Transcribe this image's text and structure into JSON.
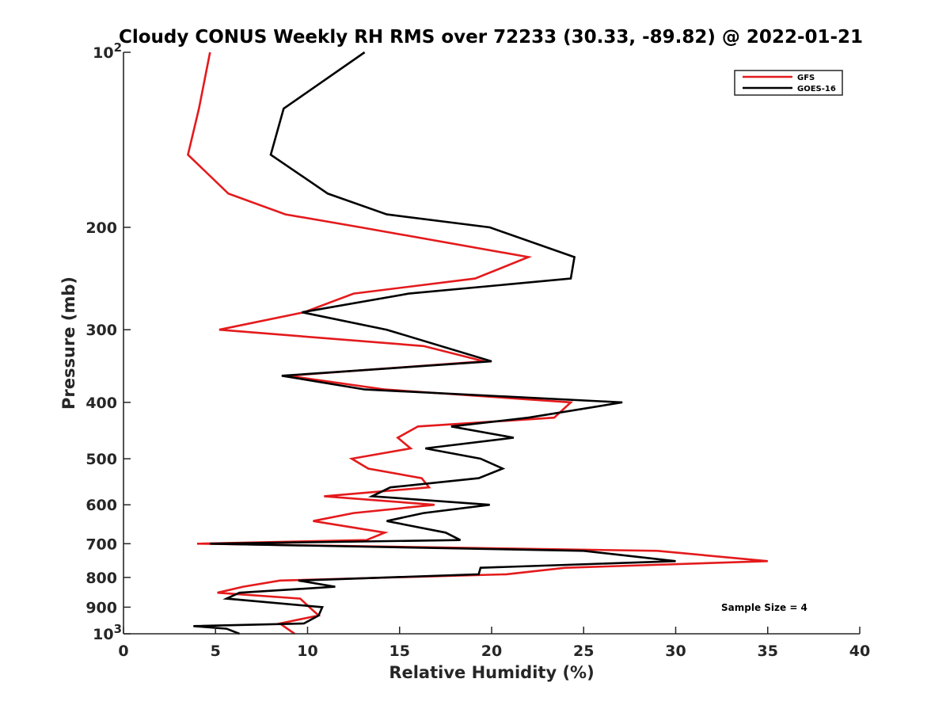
{
  "chart_data": {
    "type": "line",
    "orientation": "profile",
    "title": "Cloudy CONUS Weekly RH RMS over 72233 (30.33, -89.82) @ 2022-01-21",
    "xlabel": "Relative Humidity (%)",
    "ylabel": "Pressure (mb)",
    "xlim": [
      0,
      40
    ],
    "ylim": [
      100,
      1000
    ],
    "yscale": "log",
    "yreverse": true,
    "x_ticks": [
      {
        "value": 0,
        "label": "0"
      },
      {
        "value": 5,
        "label": "5"
      },
      {
        "value": 10,
        "label": "10"
      },
      {
        "value": 15,
        "label": "15"
      },
      {
        "value": 20,
        "label": "20"
      },
      {
        "value": 25,
        "label": "25"
      },
      {
        "value": 30,
        "label": "30"
      },
      {
        "value": 35,
        "label": "35"
      },
      {
        "value": 40,
        "label": "40"
      }
    ],
    "y_ticks": [
      {
        "value": 100,
        "label": "10",
        "sup": "2"
      },
      {
        "value": 200,
        "label": "200",
        "sup": ""
      },
      {
        "value": 300,
        "label": "300",
        "sup": ""
      },
      {
        "value": 400,
        "label": "400",
        "sup": ""
      },
      {
        "value": 500,
        "label": "500",
        "sup": ""
      },
      {
        "value": 600,
        "label": "600",
        "sup": ""
      },
      {
        "value": 700,
        "label": "700",
        "sup": ""
      },
      {
        "value": 800,
        "label": "800",
        "sup": ""
      },
      {
        "value": 900,
        "label": "900",
        "sup": ""
      },
      {
        "value": 1000,
        "label": "10",
        "sup": "3"
      }
    ],
    "legend_position": "top-right",
    "annotation": "Sample Size = 4",
    "series": [
      {
        "name": "GFS",
        "color": "#e41a1c",
        "points": [
          [
            4.7,
            100
          ],
          [
            4.1,
            125
          ],
          [
            3.5,
            150
          ],
          [
            5.7,
            175
          ],
          [
            8.8,
            190
          ],
          [
            12.9,
            200
          ],
          [
            22.0,
            225
          ],
          [
            19.1,
            245
          ],
          [
            12.5,
            260
          ],
          [
            9.8,
            280
          ],
          [
            5.2,
            300
          ],
          [
            16.3,
            320
          ],
          [
            19.6,
            340
          ],
          [
            8.9,
            360
          ],
          [
            14.2,
            380
          ],
          [
            24.3,
            400
          ],
          [
            23.4,
            425
          ],
          [
            16.0,
            440
          ],
          [
            14.9,
            460
          ],
          [
            15.6,
            480
          ],
          [
            12.4,
            500
          ],
          [
            13.3,
            520
          ],
          [
            16.2,
            540
          ],
          [
            16.6,
            560
          ],
          [
            10.9,
            580
          ],
          [
            16.9,
            600
          ],
          [
            12.5,
            620
          ],
          [
            10.3,
            640
          ],
          [
            14.2,
            670
          ],
          [
            13.2,
            690
          ],
          [
            4.0,
            700
          ],
          [
            29.0,
            720
          ],
          [
            35.0,
            750
          ],
          [
            24.0,
            770
          ],
          [
            20.8,
            790
          ],
          [
            8.5,
            810
          ],
          [
            6.5,
            830
          ],
          [
            5.1,
            850
          ],
          [
            9.6,
            870
          ],
          [
            10.1,
            900
          ],
          [
            10.6,
            930
          ],
          [
            8.5,
            960
          ],
          [
            8.9,
            980
          ],
          [
            9.3,
            1000
          ]
        ]
      },
      {
        "name": "GOES-16",
        "color": "#000000",
        "points": [
          [
            13.1,
            100
          ],
          [
            8.7,
            125
          ],
          [
            8.0,
            150
          ],
          [
            11.1,
            175
          ],
          [
            14.3,
            190
          ],
          [
            19.9,
            200
          ],
          [
            24.5,
            225
          ],
          [
            24.3,
            245
          ],
          [
            15.5,
            260
          ],
          [
            9.7,
            280
          ],
          [
            14.3,
            300
          ],
          [
            20.0,
            340
          ],
          [
            8.6,
            360
          ],
          [
            13.1,
            380
          ],
          [
            27.1,
            400
          ],
          [
            22.0,
            425
          ],
          [
            17.8,
            440
          ],
          [
            21.2,
            460
          ],
          [
            16.4,
            480
          ],
          [
            19.4,
            500
          ],
          [
            20.6,
            520
          ],
          [
            19.3,
            540
          ],
          [
            14.5,
            560
          ],
          [
            13.5,
            580
          ],
          [
            19.9,
            600
          ],
          [
            16.3,
            620
          ],
          [
            14.3,
            640
          ],
          [
            17.5,
            670
          ],
          [
            18.3,
            690
          ],
          [
            4.7,
            700
          ],
          [
            25.0,
            720
          ],
          [
            30.0,
            750
          ],
          [
            19.4,
            770
          ],
          [
            19.3,
            790
          ],
          [
            9.5,
            810
          ],
          [
            11.5,
            830
          ],
          [
            6.3,
            850
          ],
          [
            5.6,
            870
          ],
          [
            10.8,
            900
          ],
          [
            10.6,
            930
          ],
          [
            9.8,
            960
          ],
          [
            3.8,
            970
          ],
          [
            5.6,
            980
          ],
          [
            6.3,
            1000
          ]
        ]
      }
    ]
  }
}
